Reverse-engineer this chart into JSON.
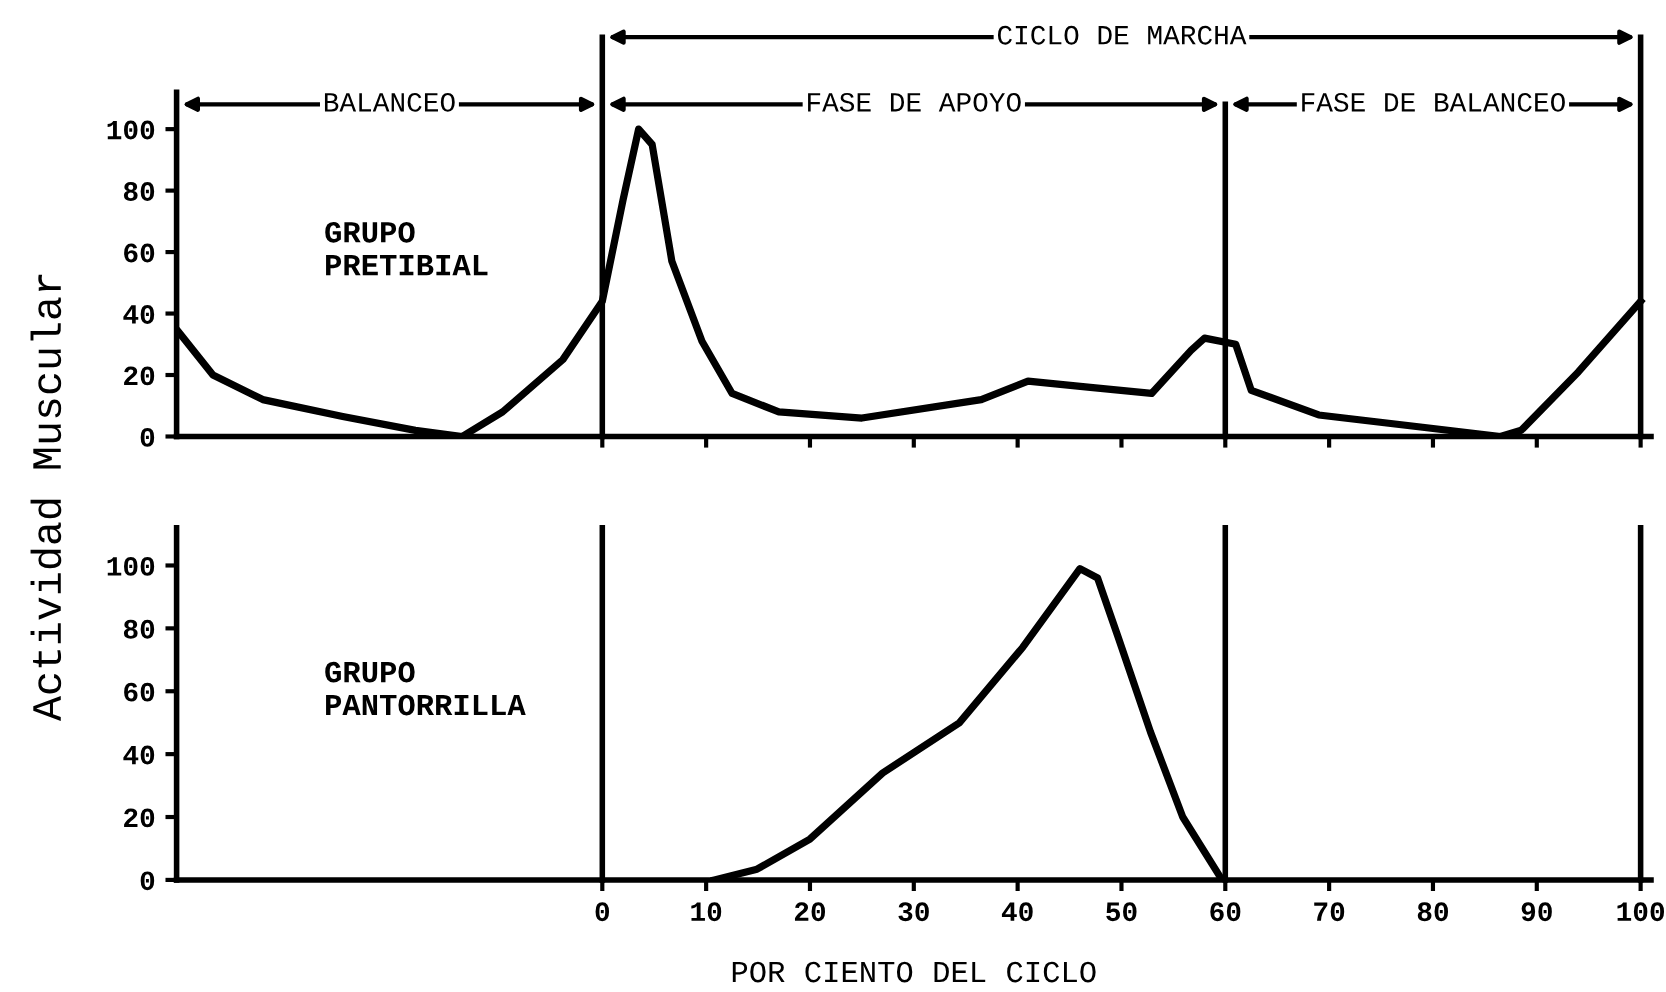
{
  "chart_data": [
    {
      "type": "line",
      "title": "GRUPO\nPRETIBIAL",
      "ylabel": "Actividad Muscular",
      "x": [
        -40.8,
        -37.5,
        -32.7,
        -25,
        -18,
        -13.5,
        -9.6,
        -3.8,
        0,
        2,
        3.5,
        4.8,
        6.7,
        9.6,
        12.5,
        17,
        25,
        36.5,
        41,
        47,
        52.9,
        56.7,
        58,
        61,
        62.5,
        69,
        79,
        86.5,
        88.5,
        94,
        100
      ],
      "series": [
        {
          "color": "#000000",
          "values": [
            34,
            20,
            12,
            6.5,
            2,
            0,
            8,
            25,
            44,
            77,
            100,
            95,
            57,
            31,
            14,
            8,
            6,
            12,
            18,
            16,
            14,
            28,
            32,
            30,
            15,
            7,
            3,
            0,
            2,
            21,
            44
          ]
        }
      ],
      "xlim": [
        -41,
        101
      ],
      "ylim": [
        0,
        112
      ],
      "xticks": [
        {
          "value": 0,
          "label": null
        },
        {
          "value": 10,
          "label": null
        },
        {
          "value": 20,
          "label": null
        },
        {
          "value": 30,
          "label": null
        },
        {
          "value": 40,
          "label": null
        },
        {
          "value": 50,
          "label": null
        },
        {
          "value": 60,
          "label": null
        },
        {
          "value": 70,
          "label": null
        },
        {
          "value": 80,
          "label": null
        },
        {
          "value": 90,
          "label": null
        },
        {
          "value": 100,
          "label": null
        }
      ],
      "yticks": [
        0,
        20,
        40,
        60,
        80,
        100
      ],
      "tick_labels": "y",
      "grid": false,
      "ref_lines": [
        {
          "axis": "x",
          "value": 0,
          "color": "#000000"
        },
        {
          "axis": "x",
          "value": 60,
          "color": "#000000"
        },
        {
          "axis": "x",
          "value": 100,
          "color": "#000000"
        }
      ],
      "annotations": [
        "CICLO DE MARCHA",
        "BALANCEO",
        "FASE DE APOYO",
        "FASE DE BALANCEO"
      ]
    },
    {
      "type": "line",
      "title": "GRUPO\nPANTORRILLA",
      "xlabel": "POR CIENTO DEL CICLO",
      "x": [
        10.8,
        14.9,
        20,
        27,
        34.4,
        40.5,
        46,
        47.7,
        49.7,
        52.8,
        55.9,
        59.5
      ],
      "series": [
        {
          "color": "#000000",
          "values": [
            0,
            3.4,
            13,
            34,
            50,
            74,
            99,
            96,
            77,
            47,
            20,
            1
          ]
        }
      ],
      "xlim": [
        -41,
        101
      ],
      "ylim": [
        0,
        112
      ],
      "xticks": [
        0,
        10,
        20,
        30,
        40,
        50,
        60,
        70,
        80,
        90,
        100
      ],
      "yticks": [
        0,
        20,
        40,
        60,
        80,
        100
      ],
      "grid": false,
      "ref_lines": [
        {
          "axis": "x",
          "value": 0,
          "color": "#000000"
        },
        {
          "axis": "x",
          "value": 60,
          "color": "#000000"
        },
        {
          "axis": "x",
          "value": 100,
          "color": "#000000"
        }
      ]
    }
  ]
}
